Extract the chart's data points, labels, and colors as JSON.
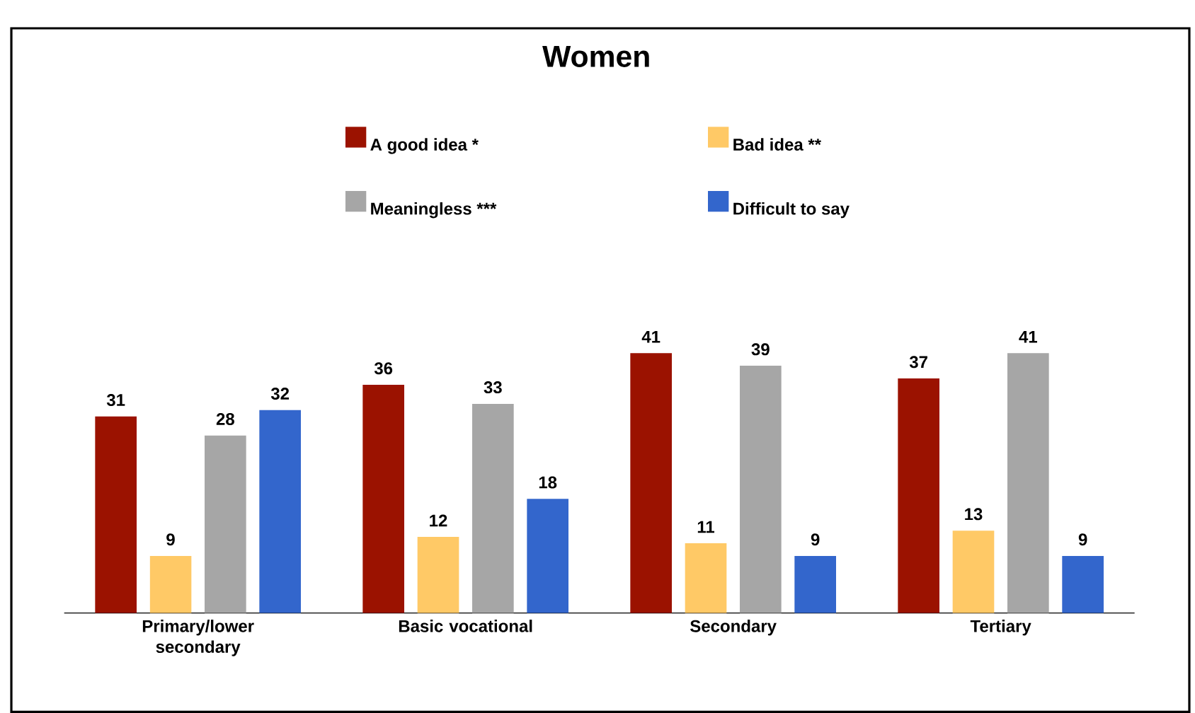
{
  "chart_data": {
    "type": "bar",
    "title": "Women",
    "categories": [
      "Primary/lower secondary",
      "Basic vocational",
      "Secondary",
      "Tertiary"
    ],
    "series": [
      {
        "name": "A good idea *",
        "color": "#9b1200",
        "values": [
          31,
          36,
          41,
          37
        ]
      },
      {
        "name": "Bad idea **",
        "color": "#ffc966",
        "values": [
          9,
          12,
          11,
          13
        ]
      },
      {
        "name": "Meaningless ***",
        "color": "#a6a6a6",
        "values": [
          28,
          33,
          39,
          41
        ]
      },
      {
        "name": "Difficult to say",
        "color": "#3366cc",
        "values": [
          32,
          18,
          9,
          9
        ]
      }
    ],
    "data_labels": true,
    "legend": "top",
    "tick_labels": "x"
  }
}
